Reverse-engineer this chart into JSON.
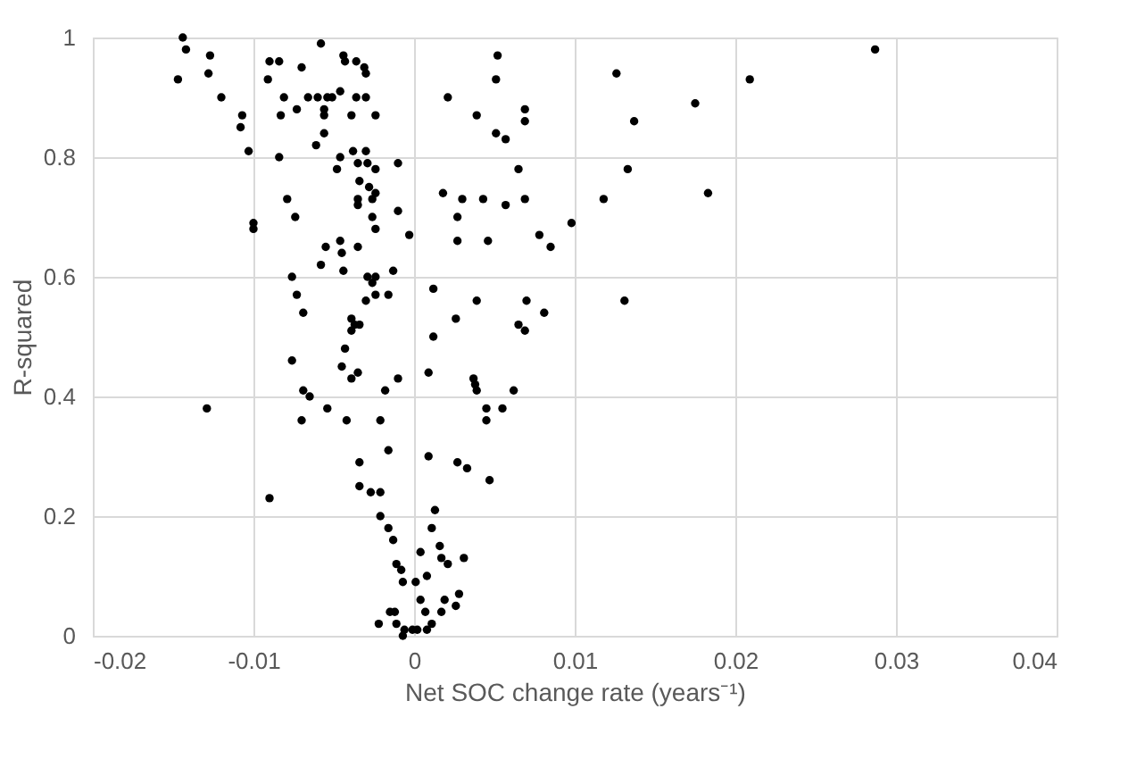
{
  "chart_data": {
    "type": "scatter",
    "xlabel": "Net SOC change rate (years⁻¹)",
    "ylabel": "R-squared",
    "xlim": [
      -0.02,
      0.04
    ],
    "xticks": [
      -0.02,
      -0.01,
      0,
      0.01,
      0.02,
      0.03,
      0.04
    ],
    "ylim": [
      0,
      1
    ],
    "yticks": [
      0,
      0.2,
      0.4,
      0.6,
      0.8,
      1
    ],
    "grid": true,
    "marker": "circle",
    "series": [
      {
        "color": "#000000",
        "x": [
          -0.0144,
          -0.0142,
          -0.0147,
          -0.0127,
          -0.0128,
          -0.012,
          -0.0107,
          -0.0108,
          -0.0103,
          -0.0084,
          -0.01,
          -0.01,
          -0.0058,
          -0.009,
          -0.0084,
          -0.007,
          -0.0091,
          -0.0044,
          -0.0043,
          -0.0036,
          -0.0031,
          -0.003,
          -0.0081,
          -0.0083,
          -0.0073,
          -0.0066,
          -0.006,
          -0.0054,
          -0.0051,
          -0.0046,
          -0.0056,
          -0.0056,
          -0.0056,
          -0.0061,
          -0.0039,
          -0.0036,
          -0.003,
          -0.0024,
          0.0021,
          -0.0038,
          -0.003,
          -0.0046,
          -0.0048,
          -0.0035,
          -0.0029,
          -0.0024,
          -0.001,
          -0.0034,
          -0.0028,
          -0.0024,
          -0.0026,
          -0.0035,
          -0.0035,
          -0.0079,
          -0.0074,
          -0.0026,
          -0.001,
          -0.0003,
          -0.0024,
          0.0018,
          -0.0055,
          -0.0046,
          -0.0045,
          -0.0035,
          -0.0058,
          -0.0044,
          -0.0076,
          -0.0073,
          -0.0069,
          -0.0029,
          -0.0024,
          -0.0026,
          -0.003,
          -0.0024,
          -0.0016,
          -0.0013,
          0.0012,
          -0.0039,
          -0.0037,
          -0.0034,
          -0.0039,
          -0.0043,
          -0.0076,
          -0.0045,
          -0.0035,
          -0.0039,
          -0.0018,
          -0.001,
          0.0009,
          0.0012,
          -0.0129,
          -0.0069,
          -0.0065,
          -0.007,
          -0.0054,
          -0.0042,
          -0.0021,
          -0.0016,
          -0.0034,
          0.0009,
          -0.0034,
          -0.0027,
          -0.0021,
          -0.009,
          -0.0021,
          -0.0016,
          -0.0013,
          0.0013,
          0.0011,
          -0.0011,
          -0.0008,
          -0.0007,
          0.0001,
          0.0008,
          0.0004,
          0.0016,
          0.0017,
          0.0021,
          0.0004,
          0.0019,
          0.0007,
          -0.0015,
          -0.0012,
          -0.0011,
          -0.0022,
          -0.0006,
          -0.0001,
          0.0002,
          0.0008,
          0.0011,
          -0.0007,
          0.0052,
          0.0051,
          0.0039,
          0.0069,
          0.0069,
          0.0051,
          0.0057,
          0.0126,
          0.0137,
          0.0065,
          0.003,
          0.0043,
          0.0057,
          0.0069,
          0.0027,
          0.0027,
          0.0046,
          0.0078,
          0.0085,
          0.0098,
          0.0133,
          0.0118,
          0.0131,
          0.0039,
          0.0026,
          0.007,
          0.0081,
          0.0065,
          0.0069,
          0.0037,
          0.0038,
          0.0039,
          0.0062,
          0.0045,
          0.0045,
          0.0055,
          0.0027,
          0.0033,
          0.0047,
          0.0031,
          0.0028,
          0.0026,
          0.0017,
          0.0175,
          0.0183,
          0.0209,
          0.0287
        ],
        "values": [
          1.0,
          0.98,
          0.93,
          0.97,
          0.94,
          0.9,
          0.87,
          0.85,
          0.81,
          0.8,
          0.69,
          0.68,
          0.99,
          0.96,
          0.96,
          0.95,
          0.93,
          0.97,
          0.96,
          0.96,
          0.95,
          0.94,
          0.9,
          0.87,
          0.88,
          0.9,
          0.9,
          0.9,
          0.9,
          0.91,
          0.88,
          0.87,
          0.84,
          0.82,
          0.87,
          0.9,
          0.9,
          0.87,
          0.9,
          0.81,
          0.81,
          0.8,
          0.78,
          0.79,
          0.79,
          0.78,
          0.79,
          0.76,
          0.75,
          0.74,
          0.73,
          0.73,
          0.72,
          0.73,
          0.7,
          0.7,
          0.71,
          0.67,
          0.68,
          0.74,
          0.65,
          0.66,
          0.64,
          0.65,
          0.62,
          0.61,
          0.6,
          0.57,
          0.54,
          0.6,
          0.6,
          0.59,
          0.56,
          0.57,
          0.57,
          0.61,
          0.58,
          0.53,
          0.52,
          0.52,
          0.51,
          0.48,
          0.46,
          0.45,
          0.44,
          0.43,
          0.41,
          0.43,
          0.44,
          0.5,
          0.38,
          0.41,
          0.4,
          0.36,
          0.38,
          0.36,
          0.36,
          0.31,
          0.29,
          0.3,
          0.25,
          0.24,
          0.24,
          0.23,
          0.2,
          0.18,
          0.16,
          0.21,
          0.18,
          0.12,
          0.11,
          0.09,
          0.09,
          0.1,
          0.14,
          0.15,
          0.13,
          0.12,
          0.06,
          0.06,
          0.04,
          0.04,
          0.04,
          0.02,
          0.02,
          0.01,
          0.01,
          0.01,
          0.01,
          0.02,
          0.0,
          0.97,
          0.93,
          0.87,
          0.88,
          0.86,
          0.84,
          0.83,
          0.94,
          0.86,
          0.78,
          0.73,
          0.73,
          0.72,
          0.73,
          0.7,
          0.66,
          0.66,
          0.67,
          0.65,
          0.69,
          0.78,
          0.73,
          0.56,
          0.56,
          0.53,
          0.56,
          0.54,
          0.52,
          0.51,
          0.43,
          0.42,
          0.41,
          0.41,
          0.38,
          0.36,
          0.38,
          0.29,
          0.28,
          0.26,
          0.13,
          0.07,
          0.05,
          0.04,
          0.89,
          0.74,
          0.93,
          0.98
        ]
      }
    ]
  }
}
